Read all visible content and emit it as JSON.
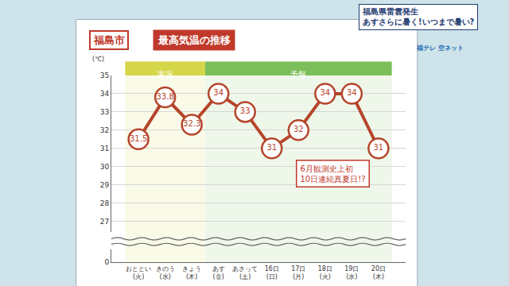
{
  "chart_data": {
    "type": "line",
    "title": "福島市 最高気温の推移",
    "y_label": "(℃)",
    "categories": [
      "おととい\n(火)",
      "きのう\n(水)",
      "きょう\n(木)",
      "あす\n(金)",
      "あさって\n(土)",
      "16日\n(日)",
      "17日\n(月)",
      "18日\n(火)",
      "19日\n(水)",
      "20日\n(木)"
    ],
    "values": [
      31.5,
      33.8,
      32.3,
      34,
      33,
      31,
      32,
      34,
      34,
      31
    ],
    "color": "#b5452b",
    "marker": "circle",
    "line_style": "solid",
    "data_labels": true,
    "ylim": [
      26.4,
      35
    ],
    "yticks": [
      27,
      28,
      29,
      30,
      31,
      32,
      33,
      34,
      35
    ],
    "y2lim": [
      0,
      0.5
    ],
    "y2ticks": [
      0
    ],
    "grid": true,
    "bands": [
      {
        "label": "実況",
        "from": 0,
        "to": 2,
        "color": "#d6d64a"
      },
      {
        "label": "予報",
        "from": 3,
        "to": 9,
        "color": "#7cbf5a"
      }
    ],
    "annotations": [
      "6月観測史上初\n10日連続真夏日!?"
    ],
    "headline": [
      "福島県雷雲発生",
      "あすさらに暑く!いつまで暑い?"
    ],
    "logo": "福テレ 空ネット"
  }
}
